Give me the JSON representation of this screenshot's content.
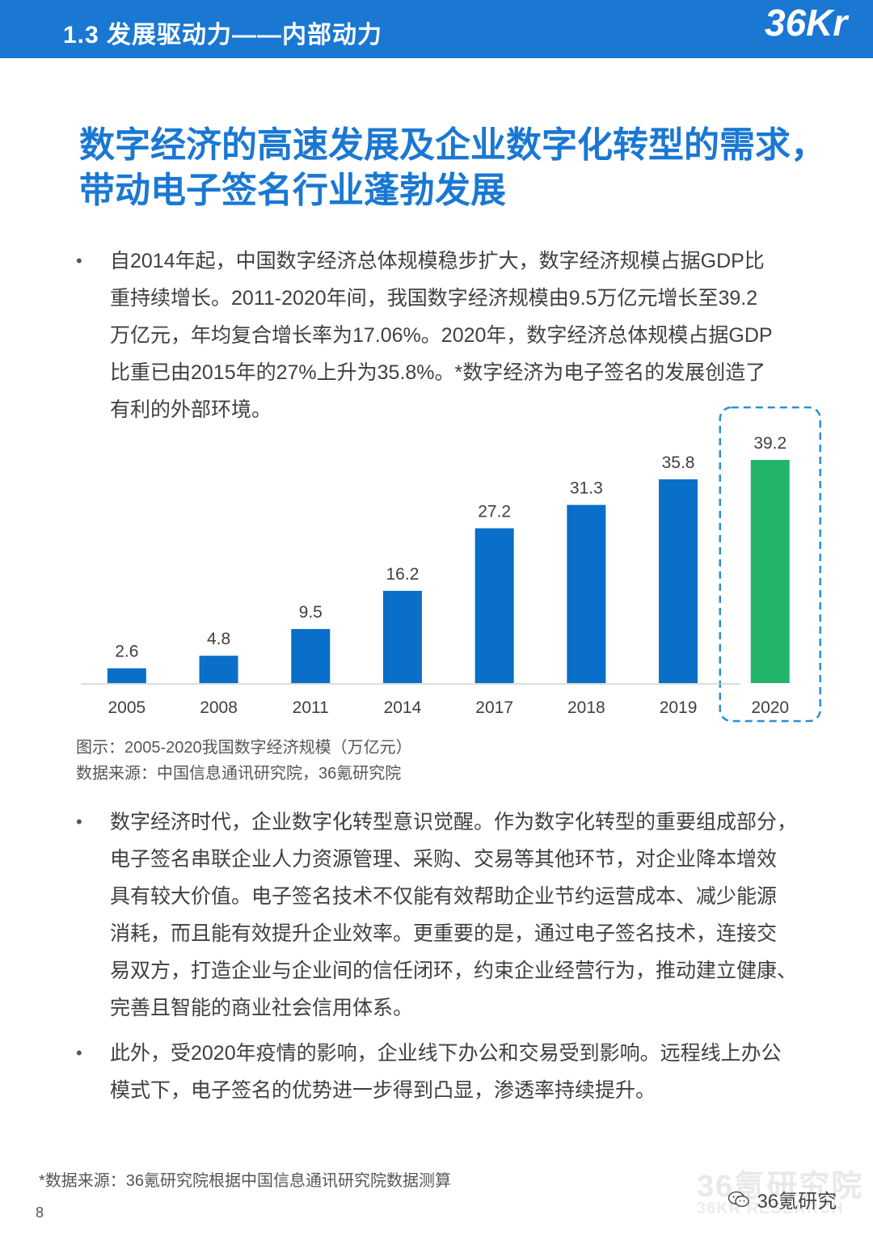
{
  "header": {
    "title": "1.3 发展驱动力——内部动力",
    "logo_text": "36Kr"
  },
  "main_title": {
    "line1": "数字经济的高速发展及企业数字化转型的需求，",
    "line2": "带动电子签名行业蓬勃发展"
  },
  "bullets": [
    {
      "symbol": "•",
      "lines": [
        "自2014年起，中国数字经济总体规模稳步扩大，数字经济规模占据GDP比",
        "重持续增长。2011-2020年间，我国数字经济规模由9.5万亿元增长至39.2",
        "万亿元，年均复合增长率为17.06%。2020年，数字经济总体规模占据GDP",
        "比重已由2015年的27%上升为35.8%。*数字经济为电子签名的发展创造了",
        "有利的外部环境。"
      ]
    },
    {
      "symbol": "•",
      "lines": [
        "数字经济时代，企业数字化转型意识觉醒。作为数字化转型的重要组成部分，",
        "电子签名串联企业人力资源管理、采购、交易等其他环节，对企业降本增效",
        "具有较大价值。电子签名技术不仅能有效帮助企业节约运营成本、减少能源",
        "消耗，而且能有效提升企业效率。更重要的是，通过电子签名技术，连接交",
        "易双方，打造企业与企业间的信任闭环，约束企业经营行为，推动建立健康、",
        "完善且智能的商业社会信用体系。"
      ]
    },
    {
      "symbol": "•",
      "lines": [
        "此外，受2020年疫情的影响，企业线下办公和交易受到影响。远程线上办公",
        "模式下，电子签名的优势进一步得到凸显，渗透率持续提升。"
      ]
    }
  ],
  "chart_data": {
    "type": "bar",
    "categories": [
      "2005",
      "2008",
      "2011",
      "2014",
      "2017",
      "2018",
      "2019",
      "2020"
    ],
    "values": [
      2.6,
      4.8,
      9.5,
      16.2,
      27.2,
      31.3,
      35.8,
      39.2
    ],
    "value_labels": [
      "2.6",
      "4.8",
      "9.5",
      "16.2",
      "27.2",
      "31.3",
      "35.8",
      "39.2"
    ],
    "ylim": [
      0,
      39.2
    ],
    "highlight_index": 7,
    "colors": {
      "bar": "#0a6fc8",
      "highlight_bar": "#21b46a",
      "highlight_border": "#2a8fd6",
      "baseline": "#d0d0d0"
    },
    "grid": false,
    "title": "",
    "xlabel": "",
    "ylabel": ""
  },
  "chart_caption": {
    "title": "图示：2005-2020我国数字经济规模（万亿元）",
    "source": "数据来源：中国信息通讯研究院，36氪研究院"
  },
  "footnote": "*数据来源：36氪研究院根据中国信息通讯研究院数据测算",
  "page_number": "8",
  "watermark": {
    "line1": "36氪研究院",
    "line2": "36KR RESEARCH"
  },
  "wechat_label": "36氪研究"
}
